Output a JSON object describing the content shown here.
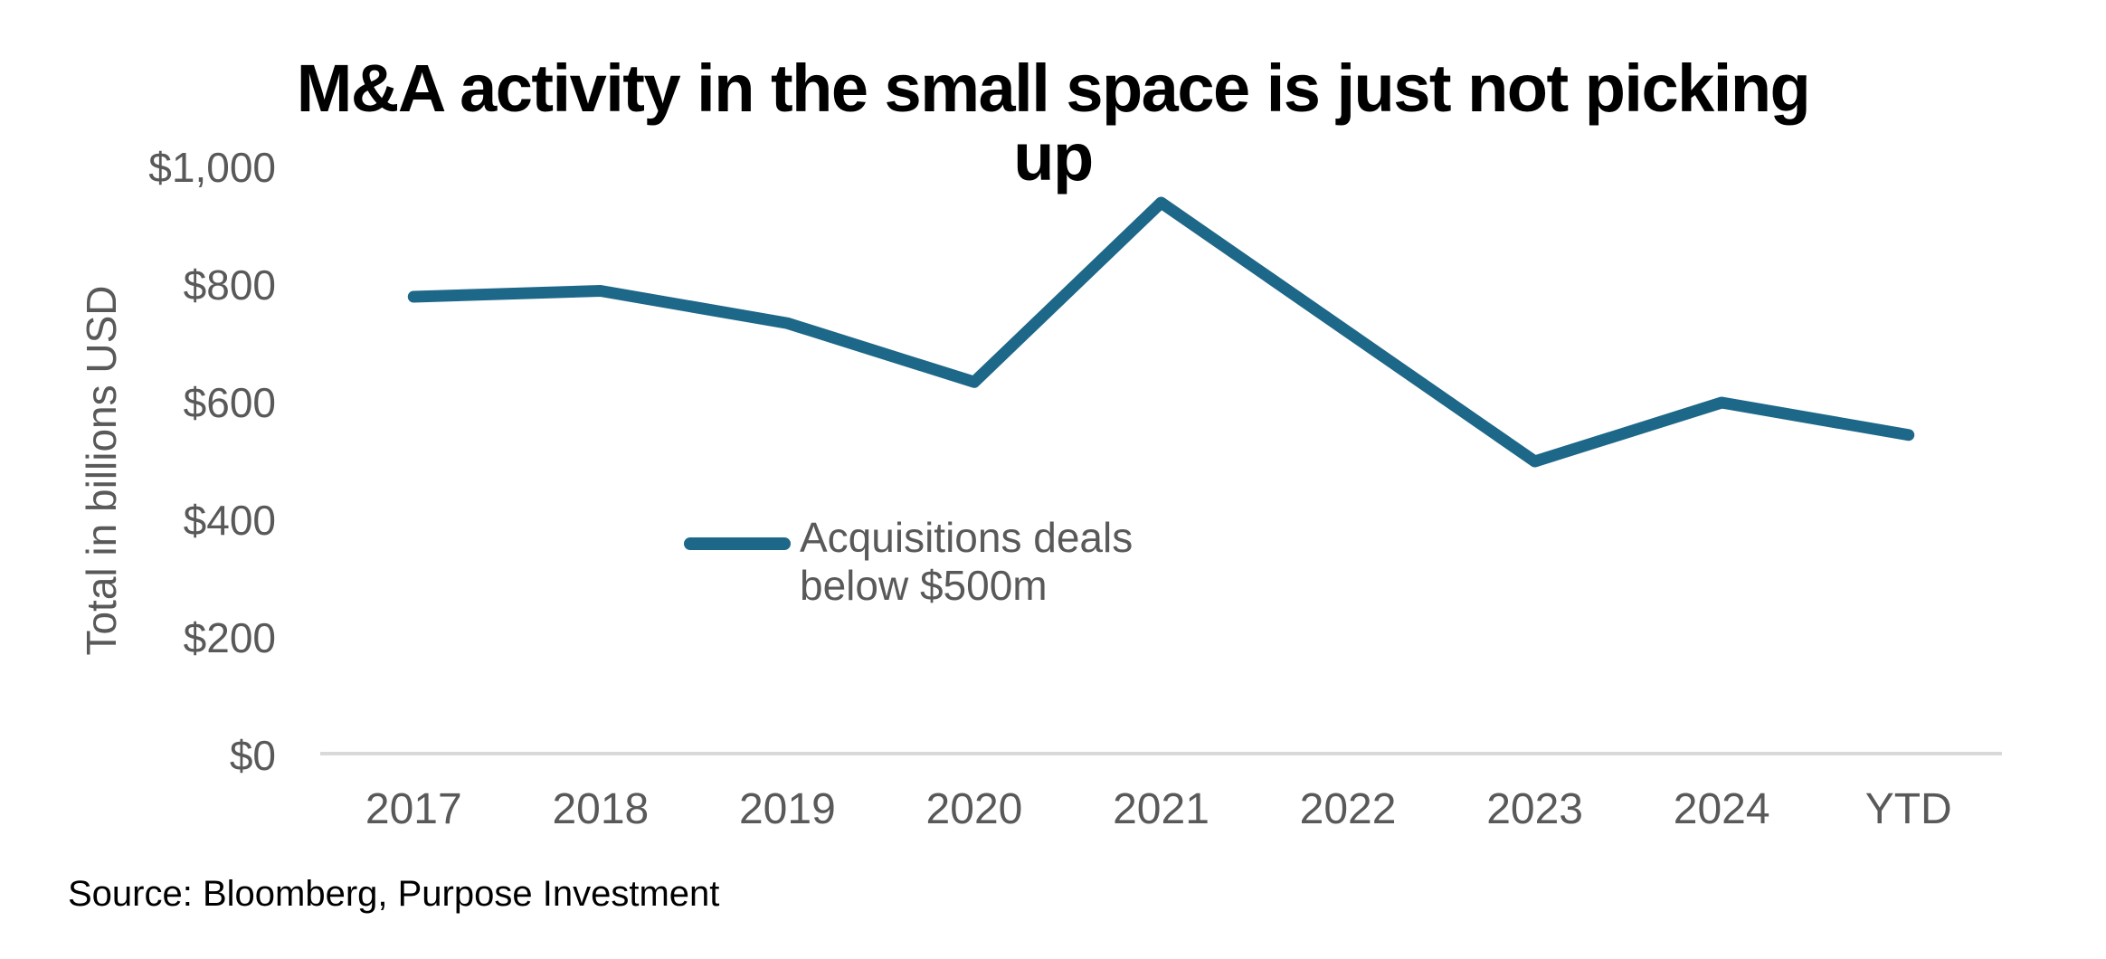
{
  "title_lines": [
    "M&A activity in the small space is just not picking",
    "up"
  ],
  "source": "Source: Bloomberg, Purpose Investment",
  "chart_data": {
    "type": "line",
    "title": "M&A activity in the small space is just not picking up",
    "xlabel": "",
    "ylabel": "Total in billions USD",
    "categories": [
      "2017",
      "2018",
      "2019",
      "2020",
      "2021",
      "2022",
      "2023",
      "2024",
      "YTD"
    ],
    "series": [
      {
        "name": "Acquisitions deals below $500m",
        "values": [
          780,
          790,
          735,
          635,
          940,
          720,
          500,
          600,
          545
        ]
      }
    ],
    "legend_label": "Acquisitions deals below $500m",
    "legend_position": "center",
    "ylim": [
      0,
      1000
    ],
    "yticks": [
      0,
      200,
      400,
      600,
      800,
      1000
    ],
    "ytick_labels": [
      "$0",
      "$200",
      "$400",
      "$600",
      "$800",
      "$1,000"
    ],
    "grid": false,
    "colors": {
      "line": "#1d6788",
      "label_gray": "#595959",
      "axis_line": "#d9d9d9",
      "title": "#000000"
    }
  }
}
